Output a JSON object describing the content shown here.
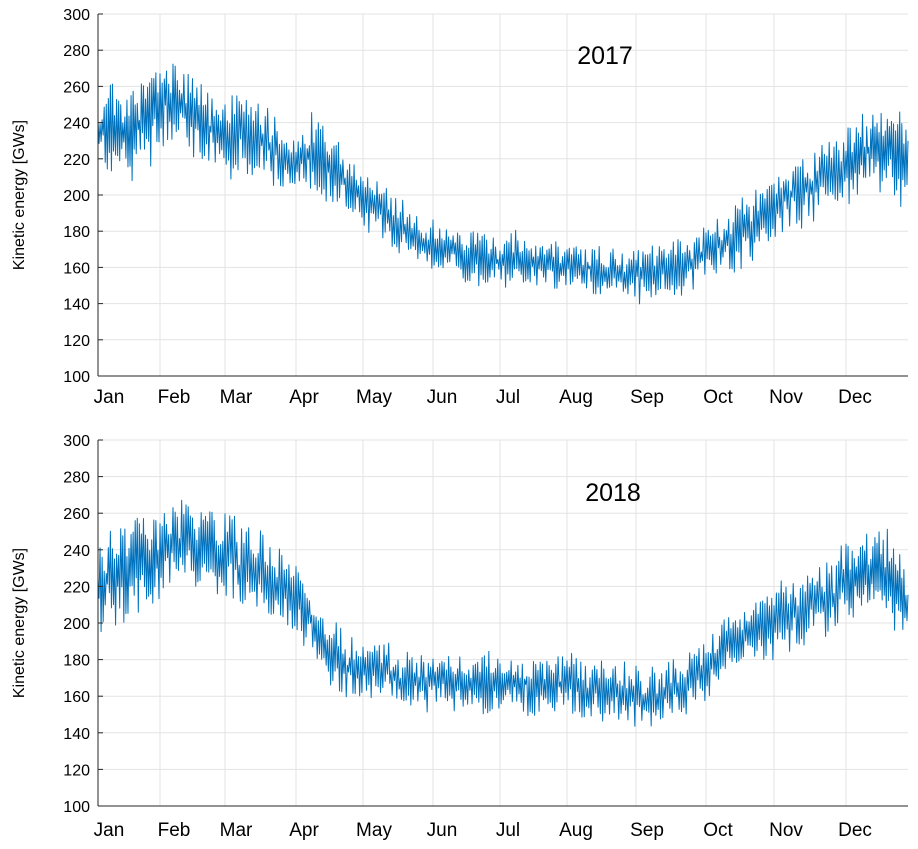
{
  "chart_data": [
    {
      "type": "line",
      "title": "2017",
      "xlabel": "",
      "ylabel": "Kinetic energy [GWs]",
      "ylim": [
        100,
        300
      ],
      "yticks": [
        100,
        120,
        140,
        160,
        180,
        200,
        220,
        240,
        260,
        280,
        300
      ],
      "xticks": [
        "Jan",
        "Feb",
        "Mar",
        "Apr",
        "May",
        "Jun",
        "Jul",
        "Aug",
        "Sep",
        "Oct",
        "Nov",
        "Dec"
      ],
      "grid": true,
      "line_color": "#0072BD",
      "series": [
        {
          "x_unit": "month",
          "x": [
            0.0,
            0.25,
            0.5,
            0.75,
            1.0,
            1.25,
            1.5,
            1.75,
            2.0,
            2.25,
            2.5,
            2.75,
            3.0,
            3.25,
            3.5,
            3.75,
            4.0,
            4.25,
            4.5,
            4.75,
            5.0,
            5.25,
            5.5,
            5.75,
            6.0,
            6.25,
            6.5,
            6.75,
            7.0,
            7.25,
            7.5,
            7.75,
            8.0,
            8.25,
            8.5,
            8.75,
            9.0,
            9.25,
            9.5,
            9.75,
            10.0,
            10.25,
            10.5,
            10.75,
            11.0,
            11.25,
            11.5,
            11.75,
            12.0
          ],
          "center": [
            235,
            238,
            232,
            240,
            248,
            252,
            245,
            236,
            230,
            238,
            232,
            222,
            220,
            224,
            215,
            208,
            198,
            190,
            182,
            176,
            172,
            170,
            165,
            164,
            164,
            166,
            163,
            162,
            162,
            160,
            158,
            157,
            156,
            158,
            160,
            163,
            167,
            172,
            178,
            185,
            192,
            200,
            205,
            212,
            218,
            222,
            228,
            222,
            220
          ],
          "amplitude": [
            30,
            32,
            30,
            30,
            28,
            30,
            28,
            28,
            28,
            30,
            26,
            24,
            24,
            24,
            22,
            20,
            20,
            20,
            18,
            18,
            18,
            18,
            18,
            18,
            18,
            18,
            17,
            17,
            16,
            16,
            16,
            18,
            20,
            20,
            20,
            18,
            18,
            20,
            22,
            22,
            22,
            24,
            24,
            26,
            28,
            28,
            30,
            30,
            30
          ]
        }
      ]
    },
    {
      "type": "line",
      "title": "2018",
      "xlabel": "",
      "ylabel": "Kinetic energy [GWs]",
      "ylim": [
        100,
        300
      ],
      "yticks": [
        100,
        120,
        140,
        160,
        180,
        200,
        220,
        240,
        260,
        280,
        300
      ],
      "xticks": [
        "Jan",
        "Feb",
        "Mar",
        "Apr",
        "May",
        "Jun",
        "Jul",
        "Aug",
        "Sep",
        "Oct",
        "Nov",
        "Dec"
      ],
      "grid": true,
      "line_color": "#0072BD",
      "series": [
        {
          "x_unit": "month",
          "x": [
            0.0,
            0.25,
            0.5,
            0.75,
            1.0,
            1.25,
            1.5,
            1.75,
            2.0,
            2.25,
            2.5,
            2.75,
            3.0,
            3.25,
            3.5,
            3.75,
            4.0,
            4.25,
            4.5,
            4.75,
            5.0,
            5.25,
            5.5,
            5.75,
            6.0,
            6.25,
            6.5,
            6.75,
            7.0,
            7.25,
            7.5,
            7.75,
            8.0,
            8.25,
            8.5,
            8.75,
            9.0,
            9.25,
            9.5,
            9.75,
            10.0,
            10.25,
            10.5,
            10.75,
            11.0,
            11.25,
            11.5,
            11.75,
            12.0
          ],
          "center": [
            220,
            226,
            228,
            232,
            240,
            246,
            244,
            240,
            236,
            232,
            228,
            220,
            214,
            200,
            186,
            176,
            174,
            176,
            170,
            168,
            168,
            167,
            166,
            166,
            168,
            167,
            165,
            165,
            166,
            165,
            162,
            161,
            160,
            160,
            163,
            168,
            175,
            186,
            192,
            196,
            200,
            205,
            210,
            214,
            222,
            226,
            232,
            222,
            208
          ],
          "amplitude": [
            32,
            34,
            34,
            32,
            30,
            28,
            28,
            28,
            30,
            28,
            26,
            24,
            24,
            24,
            24,
            20,
            18,
            18,
            18,
            20,
            20,
            20,
            20,
            20,
            20,
            20,
            20,
            20,
            20,
            20,
            20,
            20,
            20,
            20,
            20,
            20,
            20,
            20,
            20,
            22,
            22,
            24,
            24,
            26,
            26,
            28,
            28,
            28,
            28
          ]
        }
      ]
    }
  ]
}
